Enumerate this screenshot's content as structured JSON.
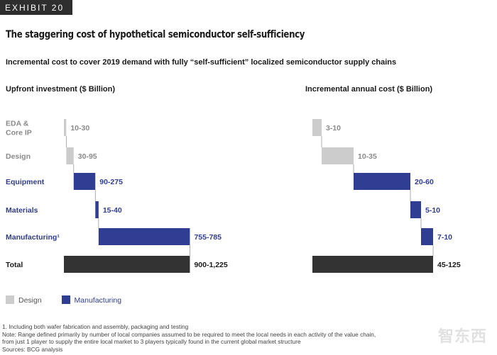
{
  "exhibit_label": "EXHIBIT 20",
  "title": "The staggering cost of hypothetical semiconductor self-sufficiency",
  "subtitle": "Incremental cost to cover 2019 demand with fully “self-sufficient” localized semiconductor supply chains",
  "colors": {
    "design": "#cccccc",
    "manufacturing": "#2f3d93",
    "total": "#333333",
    "design_label": "#8a8a8a"
  },
  "chart_data": [
    {
      "type": "bar",
      "subtype": "waterfall",
      "title": "Upfront investment ($ Billion)",
      "categories": [
        "EDA & Core IP",
        "Design",
        "Equipment",
        "Materials",
        "Manufacturing¹",
        "Total"
      ],
      "value_labels": [
        "10-30",
        "30-95",
        "90-275",
        "15-40",
        "755-785",
        "900-1,225"
      ],
      "midpoints": [
        20,
        62.5,
        182.5,
        27.5,
        770,
        1062.5
      ],
      "groups": [
        "design",
        "design",
        "manufacturing",
        "manufacturing",
        "manufacturing",
        "total"
      ]
    },
    {
      "type": "bar",
      "subtype": "waterfall",
      "title": "Incremental annual cost ($ Billion)",
      "categories": [
        "EDA & Core IP",
        "Design",
        "Equipment",
        "Materials",
        "Manufacturing¹",
        "Total"
      ],
      "value_labels": [
        "3-10",
        "10-35",
        "20-60",
        "5-10",
        "7-10",
        "45-125"
      ],
      "midpoints": [
        6.5,
        22.5,
        40,
        7.5,
        8.5,
        85
      ],
      "groups": [
        "design",
        "design",
        "manufacturing",
        "manufacturing",
        "manufacturing",
        "total"
      ]
    }
  ],
  "row_labels": [
    {
      "lines": [
        "EDA &",
        "Core IP"
      ],
      "group": "design"
    },
    {
      "lines": [
        "Design"
      ],
      "group": "design"
    },
    {
      "lines": [
        "Equipment"
      ],
      "group": "manufacturing"
    },
    {
      "lines": [
        "Materials"
      ],
      "group": "manufacturing"
    },
    {
      "lines": [
        "Manufacturing¹"
      ],
      "group": "manufacturing"
    },
    {
      "lines": [
        "Total"
      ],
      "group": "total"
    }
  ],
  "legend": {
    "design": "Design",
    "manufacturing": "Manufacturing"
  },
  "footnotes": [
    "1. Including both wafer fabrication and assembly, packaging and testing",
    "Note: Range defined primarily by number of local companies assumed to be required to meet the local needs in each activity of the value chain,",
    "from just 1 player to supply the entire local market to 3 players typically found in the current global market structure",
    "Sources: BCG analysis"
  ],
  "watermark": "智东西"
}
